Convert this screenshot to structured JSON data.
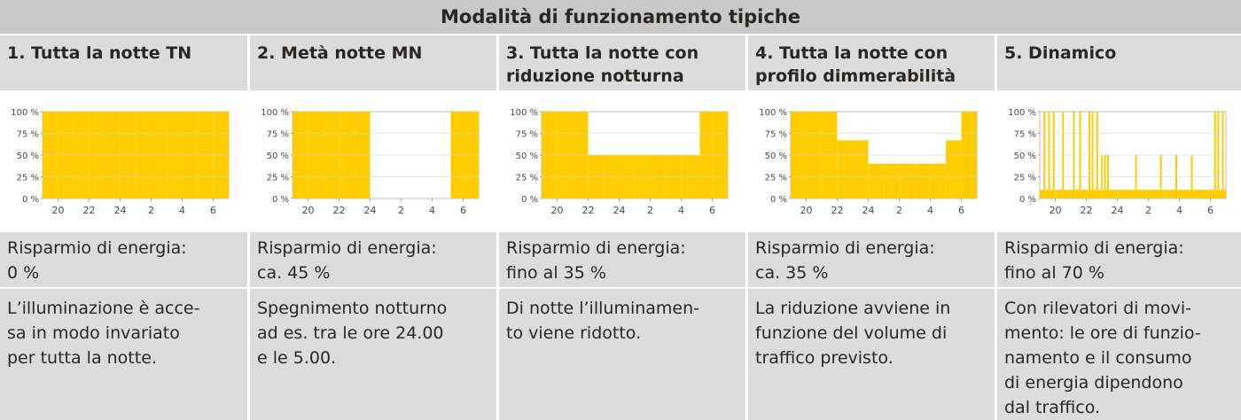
{
  "header": {
    "title": "Modalità di funzionamento tipiche"
  },
  "columns": [
    {
      "title": [
        "1. Tutta la notte TN"
      ],
      "saving": [
        "Risparmio di energia:",
        "0 %"
      ],
      "description": [
        "L’illuminazione è acce-",
        "sa in modo invariato",
        "per tutta la notte."
      ]
    },
    {
      "title": [
        "2. Metà notte MN"
      ],
      "saving": [
        "Risparmio di energia:",
        "ca. 45 %"
      ],
      "description": [
        "Spegnimento notturno",
        "ad es. tra le ore 24.00",
        "e le 5.00."
      ]
    },
    {
      "title": [
        "3. Tutta la notte con",
        "riduzione notturna"
      ],
      "saving": [
        "Risparmio di energia:",
        "fino al 35 %"
      ],
      "description": [
        "Di notte l’illuminamen-",
        "to viene ridotto."
      ]
    },
    {
      "title": [
        "4. Tutta la notte con",
        "profilo dimmerabilità"
      ],
      "saving": [
        "Risparmio di energia:",
        "ca. 35 %"
      ],
      "description": [
        "La riduzione avviene in",
        "funzione del volume di",
        "traffico previsto."
      ]
    },
    {
      "title": [
        "5. Dinamico"
      ],
      "saving": [
        "Risparmio di energia:",
        "fino al 70 %"
      ],
      "description": [
        "Con rilevatori di movi-",
        "mento: le ore di funzio-",
        "namento e il consumo",
        "di energia dipendono",
        "dal traffico."
      ]
    }
  ],
  "chart_data": [
    {
      "type": "area",
      "color": "#ffcc00",
      "x_ticks": [
        "20",
        "22",
        "24",
        "2",
        "4",
        "6"
      ],
      "y_ticks": [
        "0 %",
        "25 %",
        "50 %",
        "75 %",
        "100 %"
      ],
      "xlim": [
        19,
        31
      ],
      "ylim": [
        0,
        100
      ],
      "x": [
        19,
        31
      ],
      "values": [
        100,
        100
      ]
    },
    {
      "type": "area",
      "color": "#ffcc00",
      "x_ticks": [
        "20",
        "22",
        "24",
        "2",
        "4",
        "6"
      ],
      "y_ticks": [
        "0 %",
        "25 %",
        "50 %",
        "75 %",
        "100 %"
      ],
      "xlim": [
        19,
        31
      ],
      "ylim": [
        0,
        100
      ],
      "x": [
        19,
        24,
        24,
        29.2,
        29.2,
        31
      ],
      "values": [
        100,
        100,
        0,
        0,
        100,
        100
      ]
    },
    {
      "type": "area",
      "color": "#ffcc00",
      "x_ticks": [
        "20",
        "22",
        "24",
        "2",
        "4",
        "6"
      ],
      "y_ticks": [
        "0 %",
        "25 %",
        "50 %",
        "75 %",
        "100 %"
      ],
      "xlim": [
        19,
        31
      ],
      "ylim": [
        0,
        100
      ],
      "x": [
        19,
        22,
        22,
        29.2,
        29.2,
        31
      ],
      "values": [
        100,
        100,
        50,
        50,
        100,
        100
      ]
    },
    {
      "type": "area",
      "color": "#ffcc00",
      "x_ticks": [
        "20",
        "22",
        "24",
        "2",
        "4",
        "6"
      ],
      "y_ticks": [
        "0 %",
        "25 %",
        "50 %",
        "75 %",
        "100 %"
      ],
      "xlim": [
        19,
        31
      ],
      "ylim": [
        0,
        100
      ],
      "x": [
        19,
        22,
        22,
        24,
        24,
        29,
        29,
        30,
        30,
        31
      ],
      "values": [
        100,
        100,
        67,
        67,
        40,
        40,
        67,
        67,
        100,
        100
      ]
    },
    {
      "type": "area",
      "color": "#ffcc00",
      "x_ticks": [
        "20",
        "22",
        "24",
        "2",
        "4",
        "6"
      ],
      "y_ticks": [
        "0 %",
        "25 %",
        "50 %",
        "75 %",
        "100 %"
      ],
      "xlim": [
        19,
        31
      ],
      "ylim": [
        0,
        100
      ],
      "baseline": 10,
      "spikes": [
        {
          "x": 19.3,
          "value": 100
        },
        {
          "x": 19.6,
          "value": 100
        },
        {
          "x": 19.9,
          "value": 100
        },
        {
          "x": 20.5,
          "value": 100
        },
        {
          "x": 21.2,
          "value": 100
        },
        {
          "x": 21.6,
          "value": 100
        },
        {
          "x": 22.2,
          "value": 100
        },
        {
          "x": 22.4,
          "value": 100
        },
        {
          "x": 22.7,
          "value": 100
        },
        {
          "x": 23.0,
          "value": 50
        },
        {
          "x": 23.2,
          "value": 50
        },
        {
          "x": 23.4,
          "value": 50
        },
        {
          "x": 25.2,
          "value": 50
        },
        {
          "x": 26.8,
          "value": 50
        },
        {
          "x": 27.8,
          "value": 50
        },
        {
          "x": 28.8,
          "value": 50
        },
        {
          "x": 30.3,
          "value": 100
        },
        {
          "x": 30.5,
          "value": 100
        },
        {
          "x": 30.8,
          "value": 100
        }
      ]
    }
  ]
}
